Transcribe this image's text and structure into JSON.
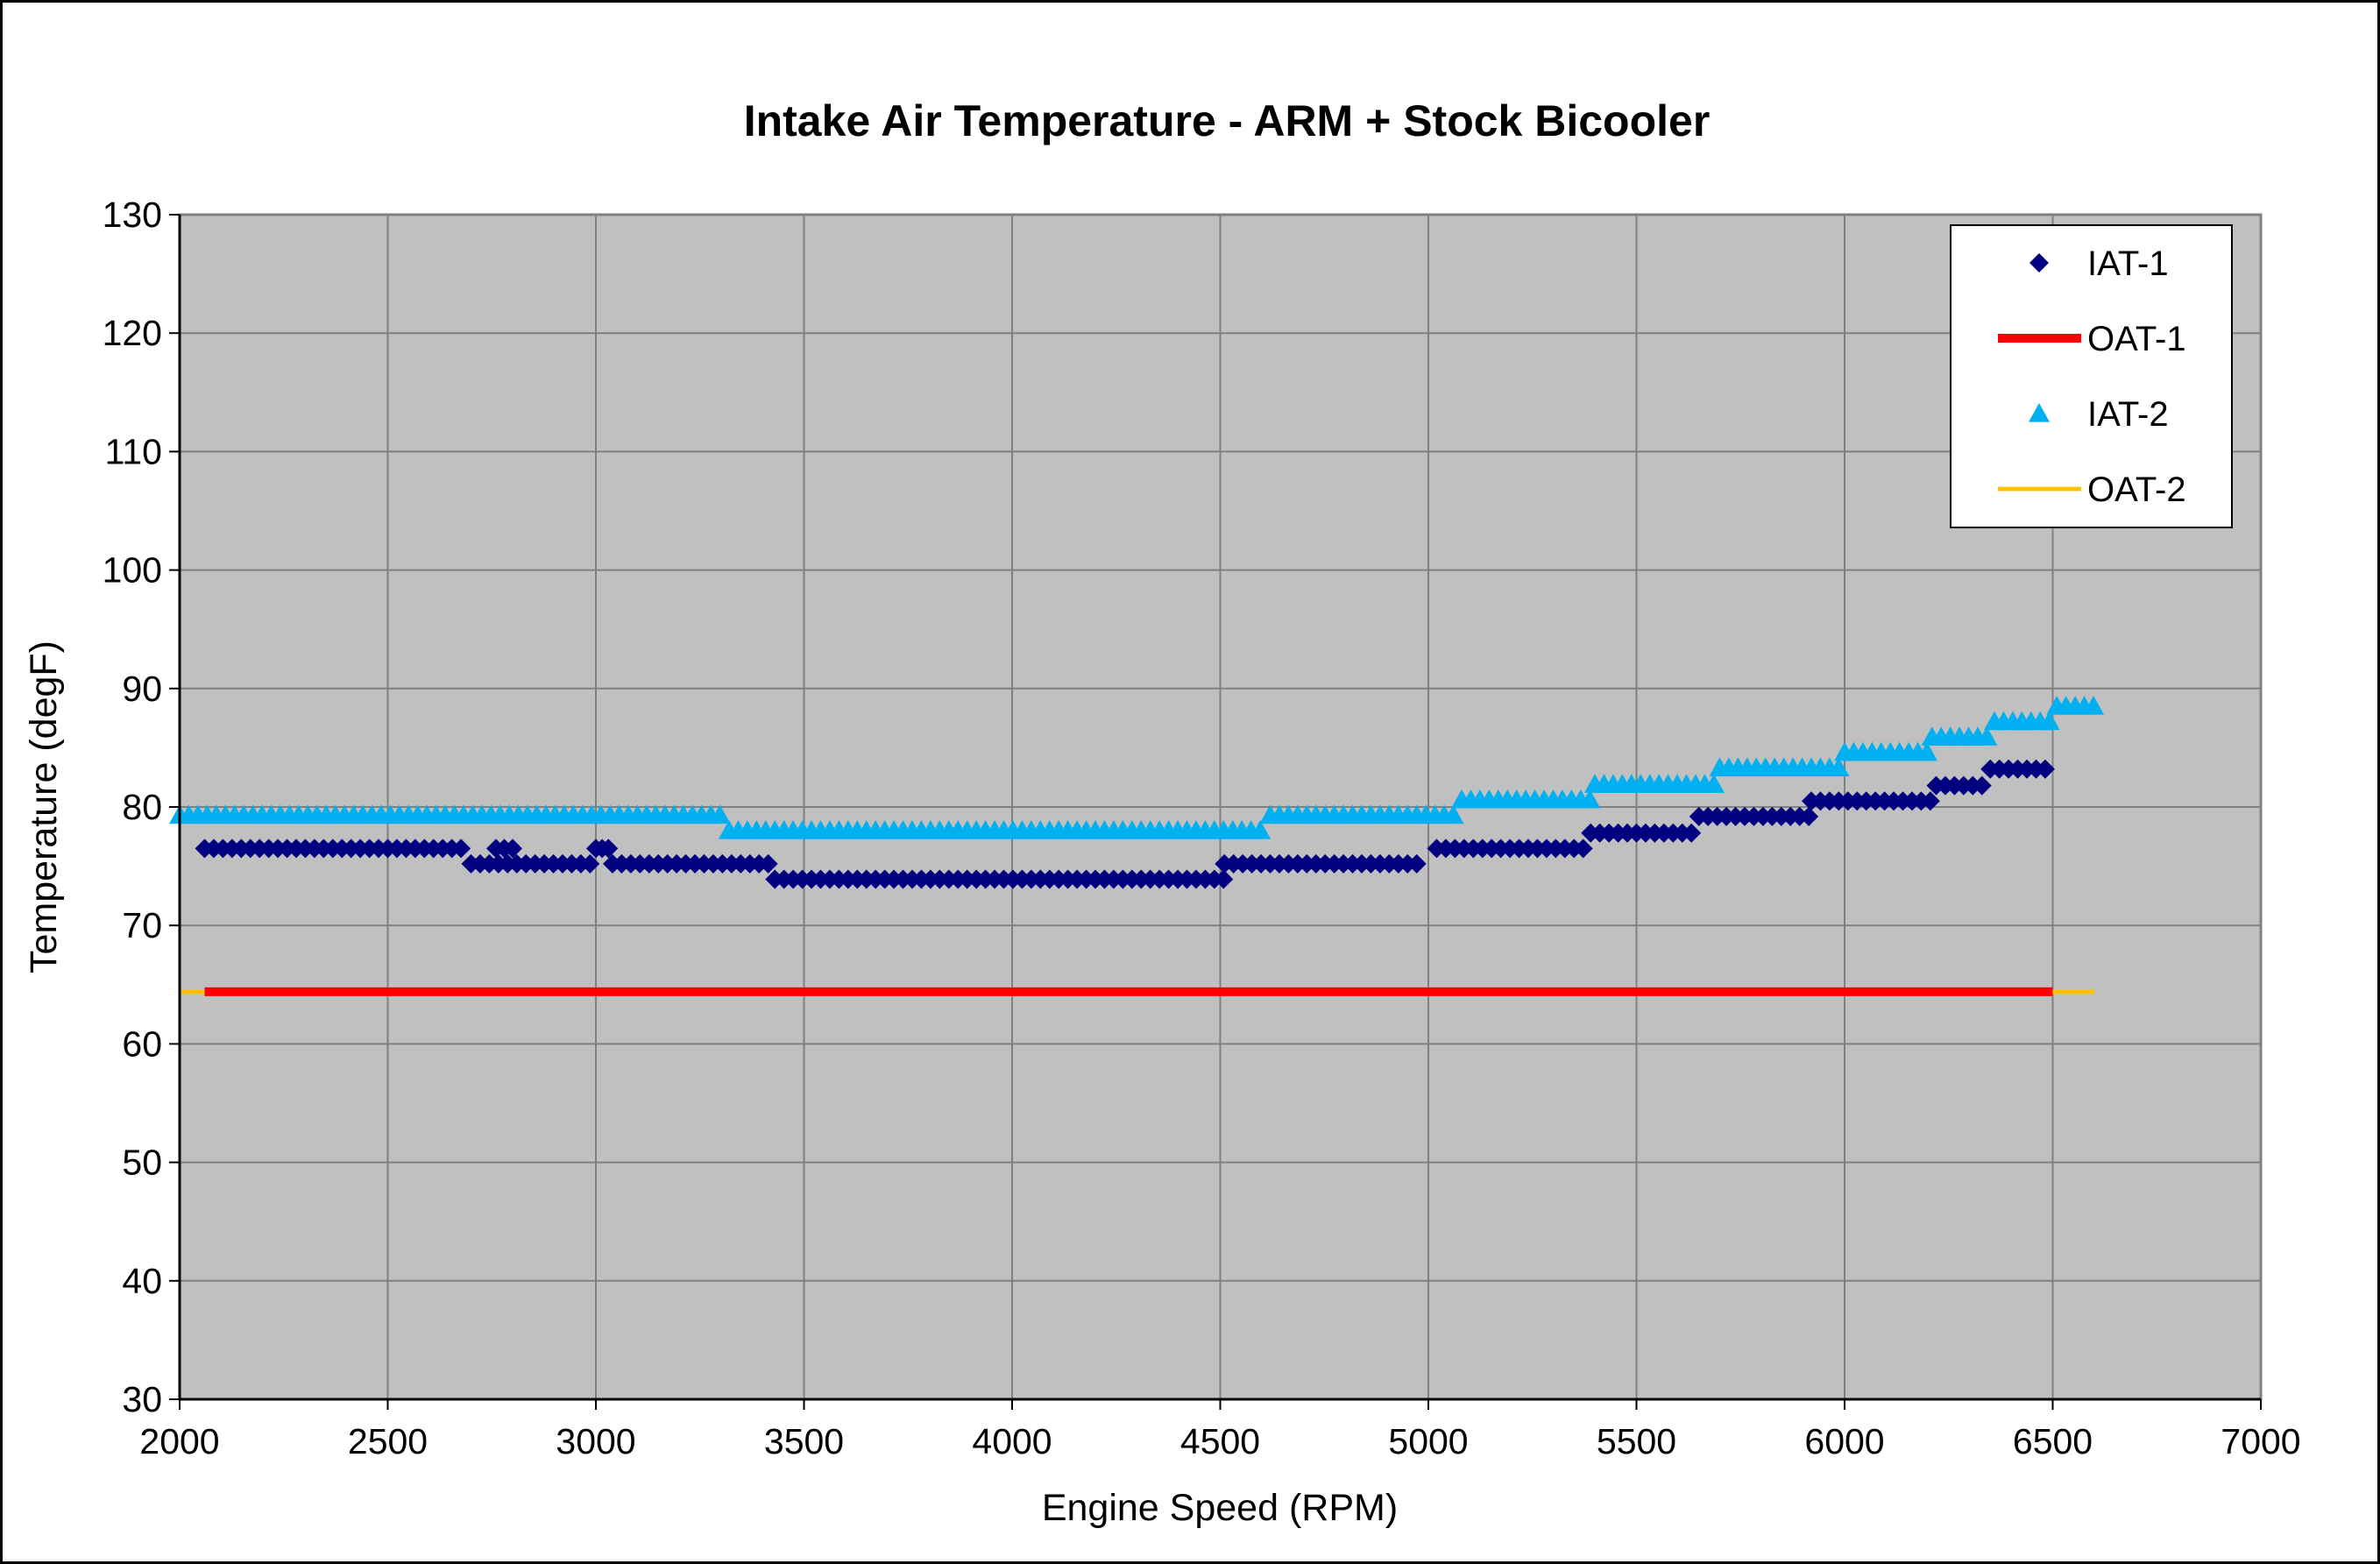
{
  "chart_data": {
    "type": "scatter",
    "title": "Intake Air Temperature - ARM + Stock Bicooler",
    "xlabel": "Engine Speed (RPM)",
    "ylabel": "Temperature (degF)",
    "xlim": [
      2000,
      7000
    ],
    "ylim": [
      30,
      130
    ],
    "x_ticks": [
      2000,
      2500,
      3000,
      3500,
      4000,
      4500,
      5000,
      5500,
      6000,
      6500,
      7000
    ],
    "y_ticks": [
      30,
      40,
      50,
      60,
      70,
      80,
      90,
      100,
      110,
      120,
      130
    ],
    "grid": true,
    "legend_position": "top-right",
    "plot_background": "#c0c0c0",
    "series": [
      {
        "name": "IAT-1",
        "marker": "diamond",
        "color": "#000080",
        "line": false,
        "segments": [
          {
            "x_start": 2060,
            "x_end": 2680,
            "y": 76.5,
            "step": 22
          },
          {
            "x_start": 2700,
            "x_end": 2990,
            "y": 75.2,
            "step": 22
          },
          {
            "x_start": 2760,
            "x_end": 2800,
            "y": 76.5,
            "step": 20
          },
          {
            "x_start": 3000,
            "x_end": 3030,
            "y": 76.5,
            "step": 15
          },
          {
            "x_start": 3040,
            "x_end": 3420,
            "y": 75.2,
            "step": 22
          },
          {
            "x_start": 3430,
            "x_end": 4510,
            "y": 73.9,
            "step": 22
          },
          {
            "x_start": 4510,
            "x_end": 4990,
            "y": 75.2,
            "step": 22
          },
          {
            "x_start": 5020,
            "x_end": 5380,
            "y": 76.5,
            "step": 22
          },
          {
            "x_start": 5390,
            "x_end": 5640,
            "y": 77.8,
            "step": 22
          },
          {
            "x_start": 5650,
            "x_end": 5920,
            "y": 79.2,
            "step": 22
          },
          {
            "x_start": 5920,
            "x_end": 6210,
            "y": 80.5,
            "step": 22
          },
          {
            "x_start": 6220,
            "x_end": 6340,
            "y": 81.8,
            "step": 22
          },
          {
            "x_start": 6350,
            "x_end": 6500,
            "y": 83.2,
            "step": 22
          }
        ]
      },
      {
        "name": "OAT-1",
        "color": "#ff0000",
        "line": true,
        "x": [
          2060,
          2160,
          2300,
          2500,
          2700,
          2900,
          3100,
          3300,
          3500,
          3700,
          3900,
          4100,
          4300,
          4500,
          4700,
          4900,
          5100,
          5300,
          5500,
          5700,
          5900,
          6100,
          6300,
          6500
        ],
        "y": [
          64.4,
          64.4,
          64.4,
          64.4,
          64.4,
          64.4,
          64.4,
          64.4,
          64.4,
          64.4,
          64.4,
          64.4,
          64.4,
          64.4,
          64.4,
          64.4,
          64.4,
          64.4,
          64.4,
          64.4,
          64.4,
          64.4,
          64.4,
          64.4
        ]
      },
      {
        "name": "IAT-2",
        "marker": "triangle",
        "color": "#00b0f0",
        "line": false,
        "segments": [
          {
            "x_start": 2000,
            "x_end": 3310,
            "y": 79.3,
            "step": 22
          },
          {
            "x_start": 3320,
            "x_end": 4610,
            "y": 78.0,
            "step": 22
          },
          {
            "x_start": 4620,
            "x_end": 5070,
            "y": 79.3,
            "step": 22
          },
          {
            "x_start": 5080,
            "x_end": 5390,
            "y": 80.6,
            "step": 22
          },
          {
            "x_start": 5400,
            "x_end": 5690,
            "y": 81.9,
            "step": 22
          },
          {
            "x_start": 5700,
            "x_end": 5990,
            "y": 83.3,
            "step": 22
          },
          {
            "x_start": 6000,
            "x_end": 6200,
            "y": 84.6,
            "step": 22
          },
          {
            "x_start": 6210,
            "x_end": 6350,
            "y": 85.9,
            "step": 22
          },
          {
            "x_start": 6360,
            "x_end": 6500,
            "y": 87.2,
            "step": 22
          },
          {
            "x_start": 6510,
            "x_end": 6600,
            "y": 88.5,
            "step": 22
          }
        ]
      },
      {
        "name": "OAT-2",
        "color": "#ffc000",
        "line": true,
        "x": [
          2000,
          2200,
          2400,
          2600,
          2800,
          3000,
          3200,
          3400,
          3600,
          3800,
          4000,
          4200,
          4400,
          4600,
          4800,
          5000,
          5200,
          5400,
          5600,
          5800,
          6000,
          6200,
          6400,
          6600
        ],
        "y": [
          64.4,
          64.4,
          64.4,
          64.4,
          64.4,
          64.4,
          64.4,
          64.4,
          64.4,
          64.4,
          64.4,
          64.4,
          64.4,
          64.4,
          64.4,
          64.4,
          64.4,
          64.4,
          64.4,
          64.4,
          64.4,
          64.4,
          64.4,
          64.4
        ]
      }
    ]
  }
}
